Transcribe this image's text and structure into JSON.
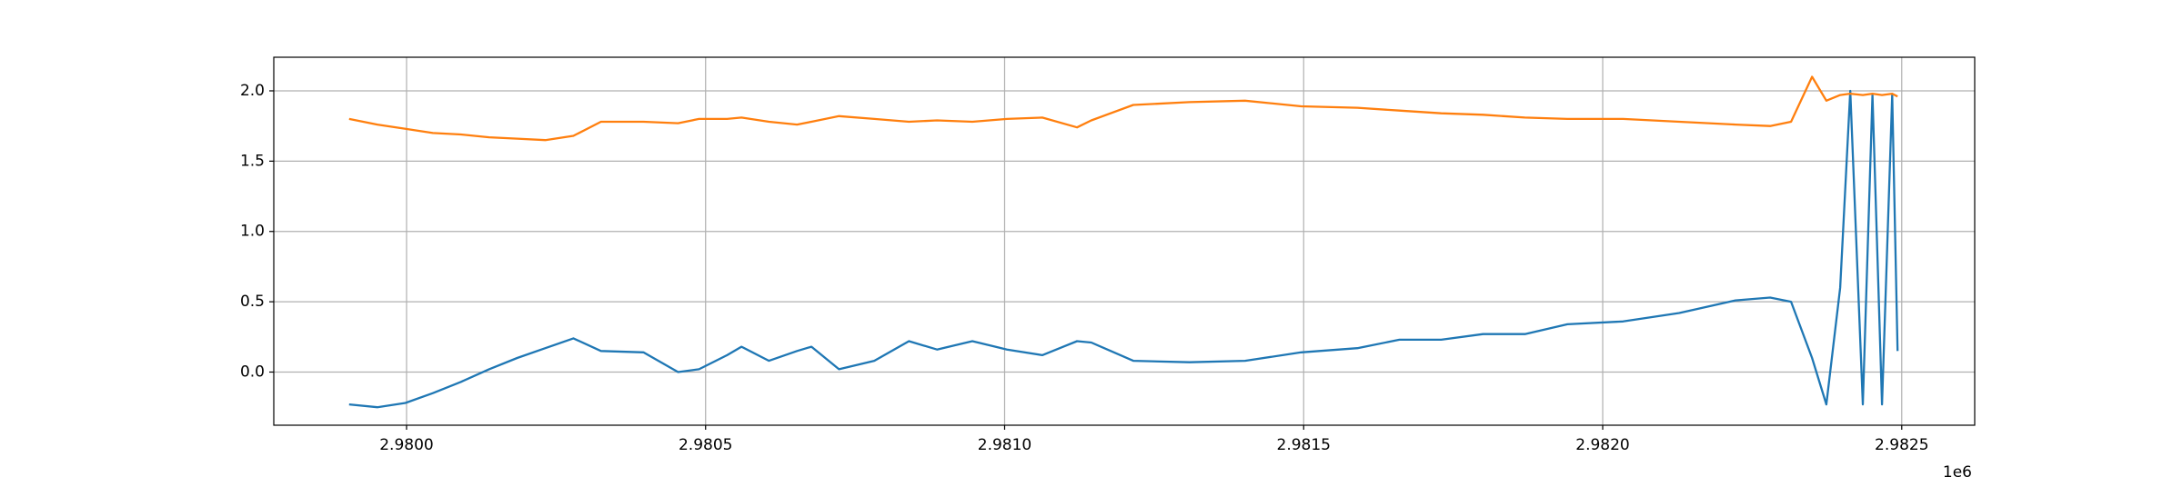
{
  "chart_data": {
    "type": "line",
    "x": [
      2979904,
      2979951,
      2979998,
      2980044,
      2980091,
      2980138,
      2980185,
      2980232,
      2980279,
      2980325,
      2980396,
      2980454,
      2980489,
      2980536,
      2980560,
      2980606,
      2980653,
      2980677,
      2980723,
      2980782,
      2980840,
      2980887,
      2980946,
      2981004,
      2981063,
      2981121,
      2981145,
      2981215,
      2981309,
      2981402,
      2981496,
      2981590,
      2981660,
      2981730,
      2981800,
      2981870,
      2981941,
      2982034,
      2982128,
      2982222,
      2982280,
      2982315,
      2982350,
      2982374,
      2982397,
      2982414,
      2982435,
      2982451,
      2982467,
      2982484,
      2982493
    ],
    "series": [
      {
        "color": "#1f77b4",
        "values": [
          -0.23,
          -0.25,
          -0.22,
          -0.15,
          -0.07,
          0.02,
          0.1,
          0.17,
          0.24,
          0.15,
          0.14,
          0.0,
          0.02,
          0.12,
          0.18,
          0.08,
          0.15,
          0.18,
          0.02,
          0.08,
          0.22,
          0.16,
          0.22,
          0.16,
          0.12,
          0.22,
          0.21,
          0.08,
          0.07,
          0.08,
          0.14,
          0.17,
          0.23,
          0.23,
          0.27,
          0.27,
          0.34,
          0.36,
          0.42,
          0.51,
          0.53,
          0.5,
          0.1,
          -0.23,
          0.6,
          2.0,
          -0.23,
          1.97,
          -0.23,
          1.97,
          0.15
        ]
      },
      {
        "color": "#ff7f0e",
        "values": [
          1.8,
          1.76,
          1.73,
          1.7,
          1.69,
          1.67,
          1.66,
          1.65,
          1.68,
          1.78,
          1.78,
          1.77,
          1.8,
          1.8,
          1.81,
          1.78,
          1.76,
          1.78,
          1.82,
          1.8,
          1.78,
          1.79,
          1.78,
          1.8,
          1.81,
          1.74,
          1.79,
          1.9,
          1.92,
          1.93,
          1.89,
          1.88,
          1.86,
          1.84,
          1.83,
          1.81,
          1.8,
          1.8,
          1.78,
          1.76,
          1.75,
          1.78,
          2.1,
          1.93,
          1.97,
          1.98,
          1.97,
          1.98,
          1.97,
          1.98,
          1.96
        ]
      }
    ],
    "xlim": [
      2979778,
      2982622
    ],
    "xticks": [
      {
        "value": 2980000,
        "label": "2.9800"
      },
      {
        "value": 2980500,
        "label": "2.9805"
      },
      {
        "value": 2981000,
        "label": "2.9810"
      },
      {
        "value": 2981500,
        "label": "2.9815"
      },
      {
        "value": 2982000,
        "label": "2.9820"
      },
      {
        "value": 2982500,
        "label": "2.9825"
      }
    ],
    "x_offset_label": "1e6",
    "ylim": [
      -0.378,
      2.239
    ],
    "yticks": [
      {
        "value": 0,
        "label": "0.0"
      },
      {
        "value": 0.5,
        "label": "0.5"
      },
      {
        "value": 1,
        "label": "1.0"
      },
      {
        "value": 1.5,
        "label": "1.5"
      },
      {
        "value": 2,
        "label": "2.0"
      }
    ],
    "grid": true
  }
}
